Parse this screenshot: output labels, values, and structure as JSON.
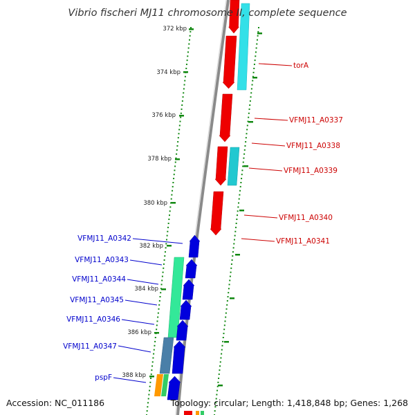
{
  "title": "Vibrio fischeri MJ11 chromosome II, complete sequence",
  "accession": "Accession: NC_011186",
  "topology": "Topology: circular; Length: 1,418,848 bp; Genes: 1,268",
  "kbp_labels": [
    "372 kbp",
    "374 kbp",
    "376 kbp",
    "378 kbp",
    "380 kbp",
    "382 kbp",
    "384 kbp",
    "386 kbp",
    "388 kbp"
  ],
  "right_genes": [
    "torA",
    "VFMJ11_A0337",
    "VFMJ11_A0338",
    "VFMJ11_A0339",
    "VFMJ11_A0340",
    "VFMJ11_A0341"
  ],
  "left_genes": [
    "VFMJ11_A0342",
    "VFMJ11_A0343",
    "VFMJ11_A0344",
    "VFMJ11_A0345",
    "VFMJ11_A0346",
    "VFMJ11_A0347",
    "pspF"
  ],
  "colors": {
    "backbone": "#8a8a8a",
    "reverse_gene": "#ee0000",
    "forward_gene": "#0000dd",
    "right_label": "#cc0000",
    "left_label": "#0000cc",
    "ticks": "#118811",
    "cyan_feature": "#33e0e8",
    "green_feature": "#33e899",
    "steel_feature": "#4a7fa8",
    "orange_feature": "#ff9900"
  }
}
